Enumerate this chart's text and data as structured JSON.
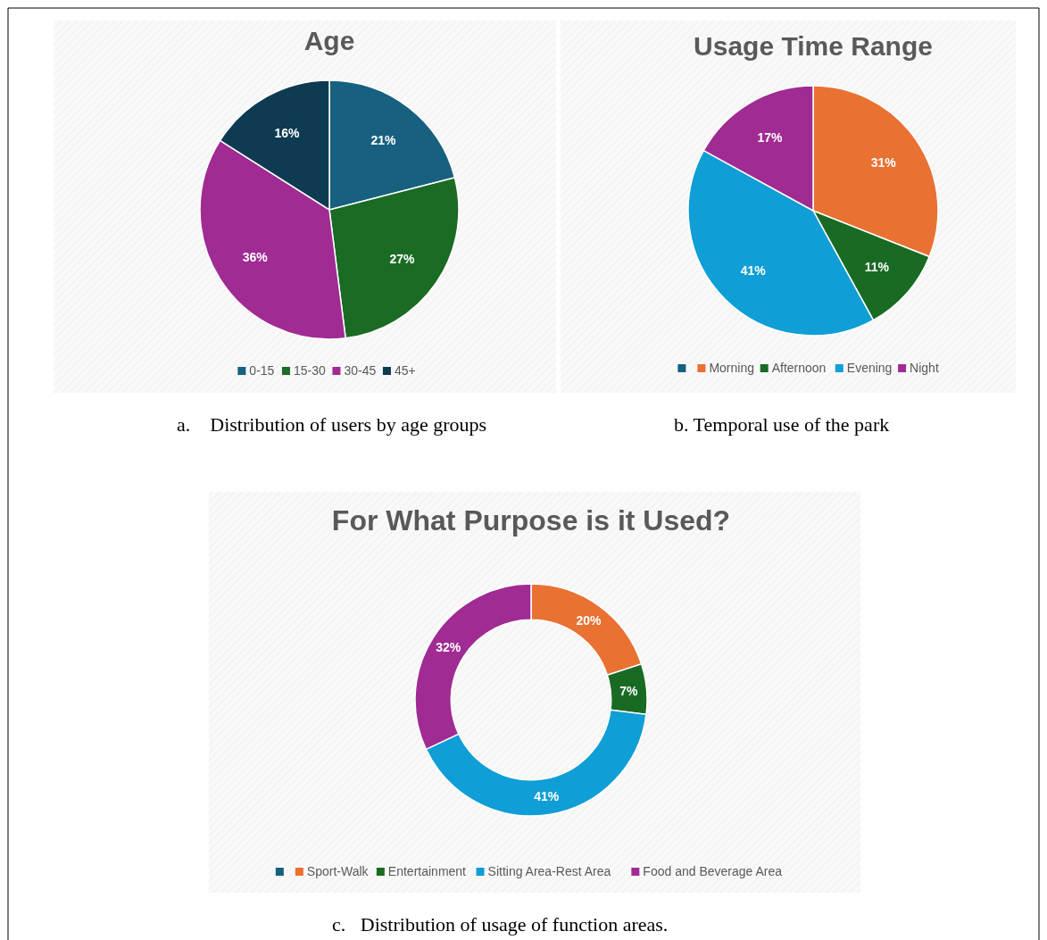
{
  "chart_data": [
    {
      "type": "pie",
      "title": "Age",
      "categories": [
        "0-15",
        "15-30",
        "30-45",
        "45+"
      ],
      "values": [
        21,
        27,
        36,
        16
      ],
      "value_labels": [
        "21%",
        "27%",
        "36%",
        "16%"
      ],
      "colors": [
        "#17607f",
        "#1a6b23",
        "#a02b93",
        "#0e3a52"
      ],
      "legend": "bottom",
      "annotations": [
        "a.    Distribution of users by age groups"
      ]
    },
    {
      "type": "pie",
      "title": "Usage Time Range",
      "categories": [
        null,
        "Morning",
        "Afternoon",
        "Evening",
        "Night"
      ],
      "values": [
        0,
        31,
        11,
        41,
        17
      ],
      "value_labels": [
        null,
        "31%",
        "11%",
        "41%",
        "17%"
      ],
      "colors": [
        "#17607f",
        "#e97132",
        "#196b24",
        "#0f9ed5",
        "#a02b93"
      ],
      "legend": "bottom",
      "annotations": [
        "b. Temporal use of the park"
      ]
    },
    {
      "type": "donut",
      "title": "For What Purpose is it Used?",
      "categories": [
        null,
        "Sport-Walk",
        "Entertainment",
        "Sitting Area-Rest Area",
        "Food and Beverage Area"
      ],
      "values": [
        0,
        20,
        7,
        41,
        32
      ],
      "value_labels": [
        null,
        "20%",
        "7%",
        "41%",
        "32%"
      ],
      "colors": [
        "#17607f",
        "#e97132",
        "#196b24",
        "#0f9ed5",
        "#a02b93"
      ],
      "legend": "bottom",
      "annotations": [
        "c.   Distribution of usage of function areas."
      ]
    }
  ]
}
